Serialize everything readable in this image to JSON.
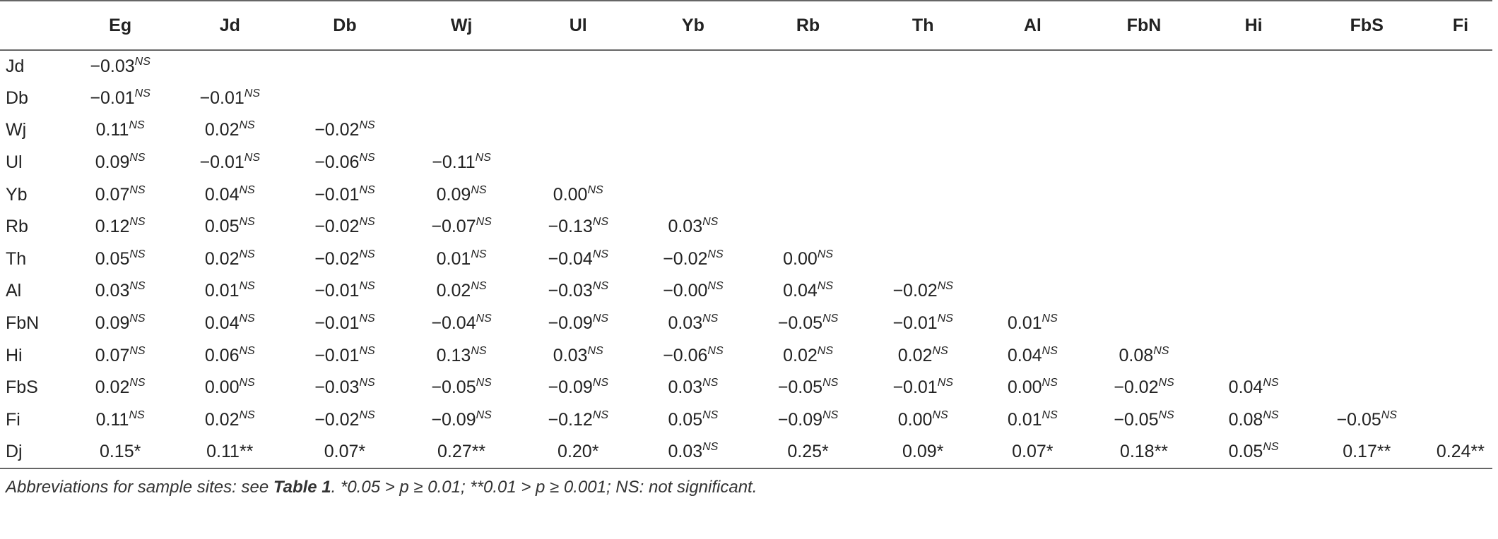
{
  "columns": [
    "Eg",
    "Jd",
    "Db",
    "Wj",
    "Ul",
    "Yb",
    "Rb",
    "Th",
    "Al",
    "FbN",
    "Hi",
    "FbS",
    "Fi"
  ],
  "rows": [
    {
      "label": "Jd",
      "cells": [
        {
          "v": "−0.03",
          "s": "NS"
        }
      ]
    },
    {
      "label": "Db",
      "cells": [
        {
          "v": "−0.01",
          "s": "NS"
        },
        {
          "v": "−0.01",
          "s": "NS"
        }
      ]
    },
    {
      "label": "Wj",
      "cells": [
        {
          "v": "0.11",
          "s": "NS"
        },
        {
          "v": "0.02",
          "s": "NS"
        },
        {
          "v": "−0.02",
          "s": "NS"
        }
      ]
    },
    {
      "label": "Ul",
      "cells": [
        {
          "v": "0.09",
          "s": "NS"
        },
        {
          "v": "−0.01",
          "s": "NS"
        },
        {
          "v": "−0.06",
          "s": "NS"
        },
        {
          "v": "−0.11",
          "s": "NS"
        }
      ]
    },
    {
      "label": "Yb",
      "cells": [
        {
          "v": "0.07",
          "s": "NS"
        },
        {
          "v": "0.04",
          "s": "NS"
        },
        {
          "v": "−0.01",
          "s": "NS"
        },
        {
          "v": "0.09",
          "s": "NS"
        },
        {
          "v": "0.00",
          "s": "NS"
        }
      ]
    },
    {
      "label": "Rb",
      "cells": [
        {
          "v": "0.12",
          "s": "NS"
        },
        {
          "v": "0.05",
          "s": "NS"
        },
        {
          "v": "−0.02",
          "s": "NS"
        },
        {
          "v": "−0.07",
          "s": "NS"
        },
        {
          "v": "−0.13",
          "s": "NS"
        },
        {
          "v": "0.03",
          "s": "NS"
        }
      ]
    },
    {
      "label": "Th",
      "cells": [
        {
          "v": "0.05",
          "s": "NS"
        },
        {
          "v": "0.02",
          "s": "NS"
        },
        {
          "v": "−0.02",
          "s": "NS"
        },
        {
          "v": "0.01",
          "s": "NS"
        },
        {
          "v": "−0.04",
          "s": "NS"
        },
        {
          "v": "−0.02",
          "s": "NS"
        },
        {
          "v": "0.00",
          "s": "NS"
        }
      ]
    },
    {
      "label": "Al",
      "cells": [
        {
          "v": "0.03",
          "s": "NS"
        },
        {
          "v": "0.01",
          "s": "NS"
        },
        {
          "v": "−0.01",
          "s": "NS"
        },
        {
          "v": "0.02",
          "s": "NS"
        },
        {
          "v": "−0.03",
          "s": "NS"
        },
        {
          "v": "−0.00",
          "s": "NS"
        },
        {
          "v": "0.04",
          "s": "NS"
        },
        {
          "v": "−0.02",
          "s": "NS"
        }
      ]
    },
    {
      "label": "FbN",
      "cells": [
        {
          "v": "0.09",
          "s": "NS"
        },
        {
          "v": "0.04",
          "s": "NS"
        },
        {
          "v": "−0.01",
          "s": "NS"
        },
        {
          "v": "−0.04",
          "s": "NS"
        },
        {
          "v": "−0.09",
          "s": "NS"
        },
        {
          "v": "0.03",
          "s": "NS"
        },
        {
          "v": "−0.05",
          "s": "NS"
        },
        {
          "v": "−0.01",
          "s": "NS"
        },
        {
          "v": "0.01",
          "s": "NS"
        }
      ]
    },
    {
      "label": "Hi",
      "cells": [
        {
          "v": "0.07",
          "s": "NS"
        },
        {
          "v": "0.06",
          "s": "NS"
        },
        {
          "v": "−0.01",
          "s": "NS"
        },
        {
          "v": "0.13",
          "s": "NS"
        },
        {
          "v": "0.03",
          "s": "NS"
        },
        {
          "v": "−0.06",
          "s": "NS"
        },
        {
          "v": "0.02",
          "s": "NS"
        },
        {
          "v": "0.02",
          "s": "NS"
        },
        {
          "v": "0.04",
          "s": "NS"
        },
        {
          "v": "0.08",
          "s": "NS"
        }
      ]
    },
    {
      "label": "FbS",
      "cells": [
        {
          "v": "0.02",
          "s": "NS"
        },
        {
          "v": "0.00",
          "s": "NS"
        },
        {
          "v": "−0.03",
          "s": "NS"
        },
        {
          "v": "−0.05",
          "s": "NS"
        },
        {
          "v": "−0.09",
          "s": "NS"
        },
        {
          "v": "0.03",
          "s": "NS"
        },
        {
          "v": "−0.05",
          "s": "NS"
        },
        {
          "v": "−0.01",
          "s": "NS"
        },
        {
          "v": "0.00",
          "s": "NS"
        },
        {
          "v": "−0.02",
          "s": "NS"
        },
        {
          "v": "0.04",
          "s": "NS"
        }
      ]
    },
    {
      "label": "Fi",
      "cells": [
        {
          "v": "0.11",
          "s": "NS"
        },
        {
          "v": "0.02",
          "s": "NS"
        },
        {
          "v": "−0.02",
          "s": "NS"
        },
        {
          "v": "−0.09",
          "s": "NS"
        },
        {
          "v": "−0.12",
          "s": "NS"
        },
        {
          "v": "0.05",
          "s": "NS"
        },
        {
          "v": "−0.09",
          "s": "NS"
        },
        {
          "v": "0.00",
          "s": "NS"
        },
        {
          "v": "0.01",
          "s": "NS"
        },
        {
          "v": "−0.05",
          "s": "NS"
        },
        {
          "v": "0.08",
          "s": "NS"
        },
        {
          "v": "−0.05",
          "s": "NS"
        }
      ]
    },
    {
      "label": "Dj",
      "cells": [
        {
          "v": "0.15*",
          "s": ""
        },
        {
          "v": "0.11**",
          "s": ""
        },
        {
          "v": "0.07*",
          "s": ""
        },
        {
          "v": "0.27**",
          "s": ""
        },
        {
          "v": "0.20*",
          "s": ""
        },
        {
          "v": "0.03",
          "s": "NS"
        },
        {
          "v": "0.25*",
          "s": ""
        },
        {
          "v": "0.09*",
          "s": ""
        },
        {
          "v": "0.07*",
          "s": ""
        },
        {
          "v": "0.18**",
          "s": ""
        },
        {
          "v": "0.05",
          "s": "NS"
        },
        {
          "v": "0.17**",
          "s": ""
        },
        {
          "v": "0.24**",
          "s": ""
        }
      ]
    }
  ],
  "footnote": {
    "prefix": "Abbreviations for sample sites: see ",
    "ref": "Table 1",
    "suffix": ". *0.05 > p ≥ 0.01; **0.01 > p ≥ 0.001; NS: not significant."
  }
}
